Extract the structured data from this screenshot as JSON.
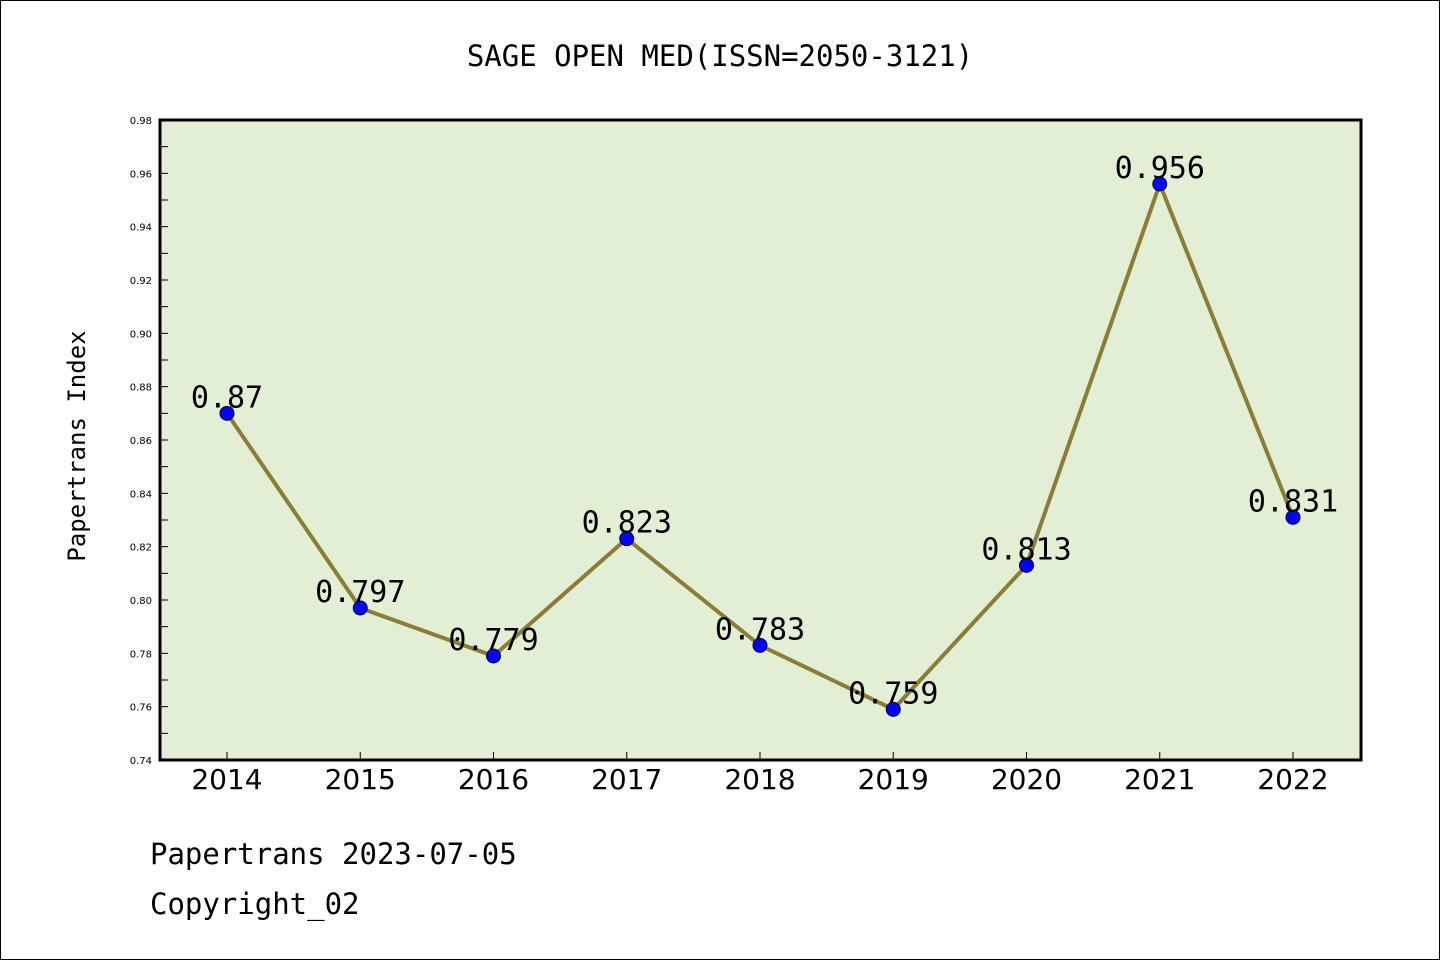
{
  "footer": {
    "line1": "Papertrans 2023-07-05",
    "line2": "Copyright_02"
  },
  "colors": {
    "plot_background": "#e2efd5",
    "line": "#8b7d35",
    "marker": "#0000ff"
  },
  "chart_data": {
    "type": "line",
    "title": "SAGE OPEN MED(ISSN=2050-3121)",
    "xlabel": "",
    "ylabel": "Papertrans Index",
    "categories": [
      "2014",
      "2015",
      "2016",
      "2017",
      "2018",
      "2019",
      "2020",
      "2021",
      "2022"
    ],
    "values": [
      0.87,
      0.797,
      0.779,
      0.823,
      0.783,
      0.759,
      0.813,
      0.956,
      0.831
    ],
    "data_labels": [
      "0.87",
      "0.797",
      "0.779",
      "0.823",
      "0.783",
      "0.759",
      "0.813",
      "0.956",
      "0.831"
    ],
    "ylim": [
      0.74,
      0.98
    ],
    "yticks": [
      "0.74",
      "0.76",
      "0.78",
      "0.80",
      "0.82",
      "0.84",
      "0.86",
      "0.88",
      "0.90",
      "0.92",
      "0.94",
      "0.96",
      "0.98"
    ],
    "grid": false,
    "legend": "none"
  }
}
